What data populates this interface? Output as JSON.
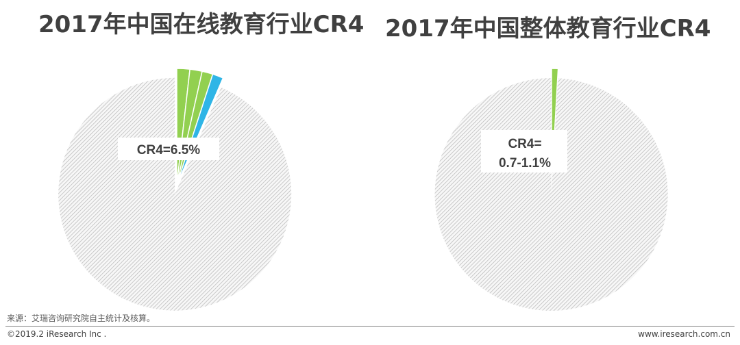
{
  "footer": {
    "source": "来源：艾瑞咨询研究院自主统计及核算。",
    "copyright": "©2019.2 iResearch Inc .",
    "website": "www.iresearch.com.cn"
  },
  "colors": {
    "other": "#d9d9d9",
    "green": "#92d050",
    "lightgreen": "#b2d85a",
    "blue": "#2fb5e6"
  },
  "chart_data": [
    {
      "type": "pie",
      "title": "2017年中国在线教育行业CR4",
      "annotation": "CR4=6.5%",
      "slices": [
        {
          "value": 1.8,
          "color": "#92d050"
        },
        {
          "value": 1.7,
          "color": "#92d050"
        },
        {
          "value": 1.5,
          "color": "#92d050"
        },
        {
          "value": 1.5,
          "color": "#2fb5e6"
        },
        {
          "value": 93.5,
          "color": "#d9d9d9",
          "exploded": true
        }
      ]
    },
    {
      "type": "pie",
      "title": "2017年中国整体教育行业CR4",
      "annotation": "CR4=\n0.7-1.1%",
      "annotation_lines": [
        "CR4=",
        "0.7-1.1%"
      ],
      "slices": [
        {
          "value": 0.9,
          "color": "#92d050"
        },
        {
          "value": 99.1,
          "color": "#d9d9d9",
          "exploded": true
        }
      ]
    }
  ]
}
